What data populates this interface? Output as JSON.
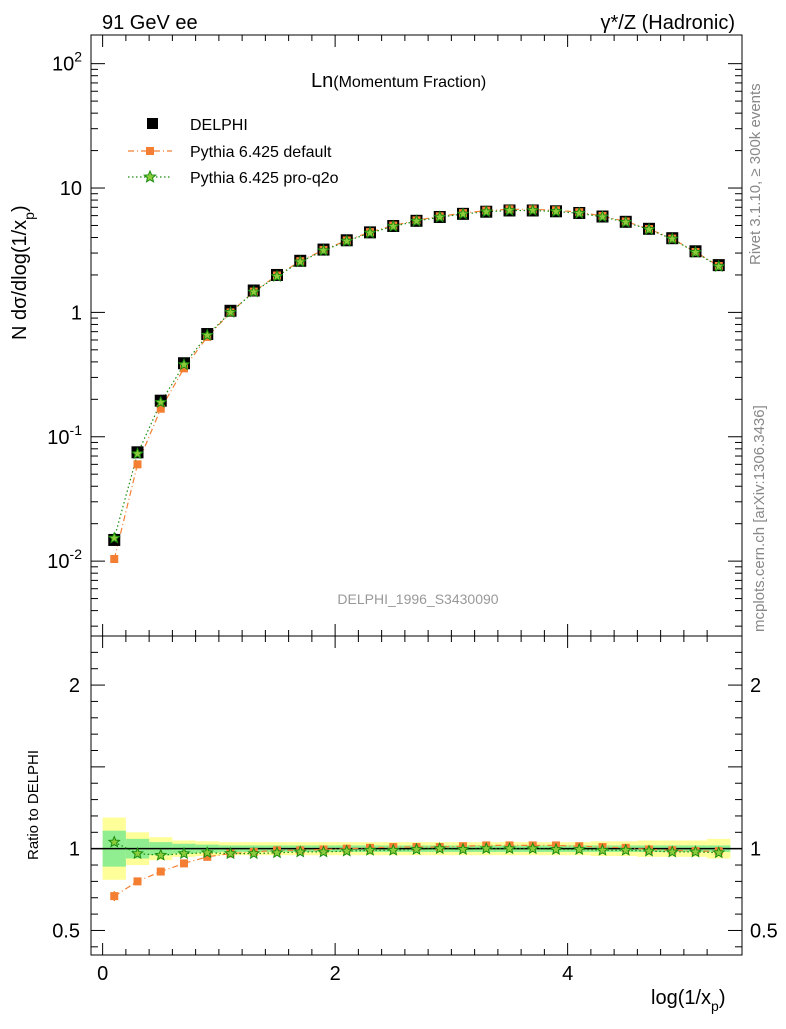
{
  "header": {
    "left": "91 GeV ee",
    "right": "γ*/Z (Hadronic)"
  },
  "side_text": {
    "rivet": "Rivet 3.1.10, ≥ 300k events",
    "mcplots": "mcplots.cern.ch [arXiv:1306.3436]"
  },
  "colors": {
    "data": "#000000",
    "default": "#f47f33",
    "proq2o": "#1a8c10",
    "proq2o_fill": "#8ccc3c",
    "band_inner": "#90ee90",
    "band_outer": "#ffff99",
    "watermark": "#999999"
  },
  "chart_data": {
    "type": "line",
    "title": "Ln",
    "subtitle": "(Momentum Fraction)",
    "watermark": "DELPHI_1996_S3430090",
    "xlabel": "log(1/x",
    "xlabel_sub": "p",
    "ylabel": "N dσ/dlog(1/x",
    "ylabel_sub": "p",
    "ratio_ylabel": "Ratio to DELPHI",
    "xlim": [
      -0.1,
      5.5
    ],
    "ylim": [
      0.0025,
      170
    ],
    "yscale": "log",
    "ratio_ylim": [
      0.35,
      2.3
    ],
    "x_ticks": [
      "0",
      "2",
      "4"
    ],
    "x_tick_values": [
      0,
      2,
      4
    ],
    "y_ticks": [
      "10^-2",
      "10^-1",
      "1",
      "10",
      "10^2"
    ],
    "y_tick_values": [
      0.01,
      0.1,
      1,
      10,
      100
    ],
    "ratio_ticks": [
      "0.5",
      "1",
      "2"
    ],
    "ratio_tick_values": [
      0.5,
      1,
      2
    ],
    "legend_position": "top-left",
    "x": [
      0.1,
      0.3,
      0.5,
      0.7,
      0.9,
      1.1,
      1.3,
      1.5,
      1.7,
      1.9,
      2.1,
      2.3,
      2.5,
      2.7,
      2.9,
      3.1,
      3.3,
      3.5,
      3.7,
      3.9,
      4.1,
      4.3,
      4.5,
      4.7,
      4.9,
      5.1,
      5.3
    ],
    "series": [
      {
        "name": "DELPHI",
        "marker": "square",
        "values": [
          0.0148,
          0.075,
          0.195,
          0.39,
          0.67,
          1.03,
          1.5,
          2.0,
          2.6,
          3.2,
          3.8,
          4.4,
          4.95,
          5.45,
          5.85,
          6.2,
          6.45,
          6.6,
          6.6,
          6.5,
          6.3,
          5.9,
          5.35,
          4.7,
          3.95,
          3.1,
          2.4
        ]
      },
      {
        "name": "Pythia 6.425 default",
        "marker": "filled-square",
        "line": "dash-dot",
        "values": [
          0.0104,
          0.06,
          0.168,
          0.355,
          0.635,
          1.0,
          1.47,
          1.98,
          2.58,
          3.18,
          3.79,
          4.42,
          4.99,
          5.5,
          5.92,
          6.28,
          6.58,
          6.74,
          6.74,
          6.62,
          6.39,
          5.96,
          5.38,
          4.68,
          3.92,
          3.06,
          2.36
        ]
      },
      {
        "name": "Pythia 6.425 pro-q2o",
        "marker": "star",
        "line": "dotted",
        "values": [
          0.0153,
          0.073,
          0.189,
          0.38,
          0.655,
          1.0,
          1.46,
          1.95,
          2.55,
          3.14,
          3.74,
          4.35,
          4.91,
          5.42,
          5.83,
          6.18,
          6.44,
          6.6,
          6.6,
          6.47,
          6.26,
          5.86,
          5.31,
          4.64,
          3.89,
          3.04,
          2.34
        ]
      }
    ],
    "ratio_series": [
      {
        "name": "Pythia 6.425 default",
        "values": [
          0.71,
          0.8,
          0.86,
          0.91,
          0.95,
          0.97,
          0.98,
          0.99,
          0.99,
          0.995,
          1.0,
          1.005,
          1.01,
          1.01,
          1.01,
          1.015,
          1.02,
          1.02,
          1.02,
          1.02,
          1.015,
          1.01,
          1.005,
          0.995,
          0.99,
          0.985,
          0.985
        ]
      },
      {
        "name": "Pythia 6.425 pro-q2o",
        "values": [
          1.04,
          0.97,
          0.96,
          0.97,
          0.975,
          0.97,
          0.97,
          0.975,
          0.98,
          0.98,
          0.985,
          0.99,
          0.99,
          0.995,
          1.0,
          0.995,
          1.0,
          1.0,
          1.0,
          0.995,
          0.995,
          0.99,
          0.99,
          0.985,
          0.98,
          0.98,
          0.975
        ]
      }
    ],
    "ratio_band": {
      "edges": [
        0.0,
        0.2,
        0.4,
        0.6,
        0.8,
        1.0,
        1.2,
        1.4,
        1.6,
        1.8,
        2.0,
        2.2,
        2.4,
        2.6,
        2.8,
        3.0,
        3.2,
        3.4,
        3.6,
        3.8,
        4.0,
        4.2,
        4.4,
        4.6,
        4.8,
        5.0,
        5.2,
        5.4
      ],
      "inner": [
        0.11,
        0.06,
        0.04,
        0.03,
        0.025,
        0.02,
        0.02,
        0.02,
        0.02,
        0.02,
        0.02,
        0.02,
        0.02,
        0.02,
        0.02,
        0.02,
        0.02,
        0.02,
        0.02,
        0.02,
        0.02,
        0.02,
        0.02,
        0.02,
        0.02,
        0.02,
        0.02
      ],
      "outer": [
        0.19,
        0.1,
        0.07,
        0.05,
        0.045,
        0.04,
        0.04,
        0.04,
        0.04,
        0.04,
        0.04,
        0.04,
        0.04,
        0.04,
        0.04,
        0.04,
        0.04,
        0.04,
        0.04,
        0.04,
        0.04,
        0.045,
        0.045,
        0.05,
        0.05,
        0.05,
        0.06
      ]
    }
  }
}
